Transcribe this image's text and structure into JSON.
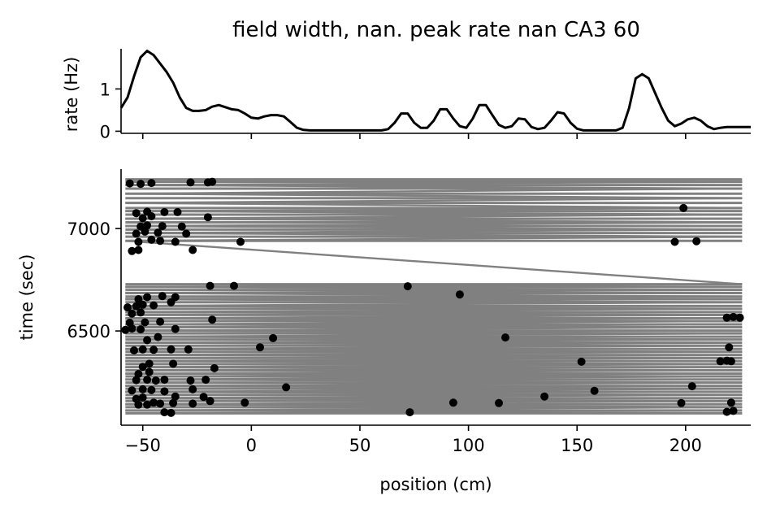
{
  "figure_title": "field width, nan. peak rate nan CA3 60",
  "colors": {
    "axis": "#000000",
    "rate_line": "#000000",
    "trajectory": "#808080",
    "spikes": "#000000"
  },
  "chart_data": [
    {
      "type": "line",
      "title": "field width, nan. peak rate nan CA3 60",
      "xlabel": "",
      "ylabel": "rate (Hz)",
      "xlim": [
        -60,
        230
      ],
      "ylim": [
        -0.05,
        1.95
      ],
      "yticks": [
        0,
        1
      ],
      "ytick_labels": [
        "0",
        "1"
      ],
      "xticks": [
        -50,
        0,
        50,
        100,
        150,
        200
      ],
      "series": [
        {
          "name": "rate",
          "x": [
            -60,
            -57,
            -54,
            -51,
            -48,
            -45,
            -42,
            -39,
            -36,
            -33,
            -30,
            -27,
            -24,
            -21,
            -18,
            -15,
            -12,
            -9,
            -6,
            -3,
            0,
            3,
            6,
            9,
            12,
            15,
            18,
            21,
            24,
            27,
            30,
            33,
            36,
            39,
            42,
            45,
            48,
            51,
            54,
            57,
            60,
            63,
            66,
            69,
            72,
            75,
            78,
            81,
            84,
            87,
            90,
            93,
            96,
            99,
            102,
            105,
            108,
            111,
            114,
            117,
            120,
            123,
            126,
            129,
            132,
            135,
            138,
            141,
            144,
            147,
            150,
            153,
            156,
            159,
            162,
            165,
            168,
            171,
            174,
            177,
            180,
            183,
            186,
            189,
            192,
            195,
            198,
            201,
            204,
            207,
            210,
            213,
            216,
            219,
            222,
            225,
            228,
            230
          ],
          "values": [
            0.55,
            0.8,
            1.3,
            1.75,
            1.9,
            1.8,
            1.6,
            1.4,
            1.15,
            0.8,
            0.55,
            0.48,
            0.48,
            0.5,
            0.58,
            0.62,
            0.57,
            0.52,
            0.5,
            0.42,
            0.32,
            0.3,
            0.35,
            0.38,
            0.38,
            0.35,
            0.22,
            0.08,
            0.03,
            0.02,
            0.02,
            0.02,
            0.02,
            0.02,
            0.02,
            0.02,
            0.02,
            0.02,
            0.02,
            0.02,
            0.02,
            0.05,
            0.2,
            0.42,
            0.42,
            0.2,
            0.08,
            0.08,
            0.25,
            0.52,
            0.52,
            0.3,
            0.12,
            0.08,
            0.3,
            0.62,
            0.62,
            0.38,
            0.15,
            0.08,
            0.12,
            0.3,
            0.28,
            0.1,
            0.05,
            0.08,
            0.25,
            0.45,
            0.42,
            0.2,
            0.06,
            0.02,
            0.02,
            0.02,
            0.02,
            0.02,
            0.02,
            0.08,
            0.55,
            1.25,
            1.35,
            1.25,
            0.9,
            0.55,
            0.25,
            0.12,
            0.18,
            0.28,
            0.32,
            0.25,
            0.12,
            0.05,
            0.08,
            0.1,
            0.1,
            0.1,
            0.1,
            0.1
          ]
        }
      ]
    },
    {
      "type": "scatter",
      "title": "",
      "xlabel": "position (cm)",
      "ylabel": "time (sec)",
      "xlim": [
        -60,
        230
      ],
      "ylim": [
        6040,
        7290
      ],
      "yticks": [
        6500,
        7000
      ],
      "ytick_labels": [
        "6500",
        "7000"
      ],
      "xticks": [
        -50,
        0,
        50,
        100,
        150,
        200
      ],
      "xtick_labels": [
        "−50",
        "0",
        "50",
        "100",
        "150",
        "200"
      ],
      "trajectory_times": [
        6098,
        6112,
        6128,
        6142,
        6158,
        6172,
        6188,
        6203,
        6218,
        6232,
        6248,
        6263,
        6278,
        6292,
        6308,
        6323,
        6338,
        6353,
        6368,
        6383,
        6398,
        6412,
        6428,
        6443,
        6458,
        6472,
        6488,
        6502,
        6518,
        6532,
        6548,
        6562,
        6578,
        6592,
        6608,
        6622,
        6640,
        6655,
        6668,
        6685,
        6700,
        6715,
        6728,
        6940,
        6960,
        6978,
        6995,
        7012,
        7030,
        7048,
        7068,
        7085,
        7100,
        7125,
        7148,
        7170,
        7195,
        7212,
        7228,
        7240
      ],
      "trajectory_xlim": [
        -58,
        226
      ],
      "spikes": [
        {
          "x": 73,
          "t": 6103
        },
        {
          "x": -37,
          "t": 6100
        },
        {
          "x": -40,
          "t": 6103
        },
        {
          "x": 219,
          "t": 6105
        },
        {
          "x": 222,
          "t": 6110
        },
        {
          "x": -52,
          "t": 6140
        },
        {
          "x": -48,
          "t": 6140
        },
        {
          "x": -45,
          "t": 6150
        },
        {
          "x": -42,
          "t": 6145
        },
        {
          "x": -36,
          "t": 6148
        },
        {
          "x": -27,
          "t": 6145
        },
        {
          "x": -19,
          "t": 6158
        },
        {
          "x": -3,
          "t": 6150
        },
        {
          "x": 93,
          "t": 6150
        },
        {
          "x": 114,
          "t": 6148
        },
        {
          "x": 198,
          "t": 6148
        },
        {
          "x": 221,
          "t": 6150
        },
        {
          "x": -53,
          "t": 6168
        },
        {
          "x": -50,
          "t": 6175
        },
        {
          "x": -35,
          "t": 6180
        },
        {
          "x": -22,
          "t": 6178
        },
        {
          "x": 135,
          "t": 6180
        },
        {
          "x": 158,
          "t": 6208
        },
        {
          "x": -55,
          "t": 6210
        },
        {
          "x": -50,
          "t": 6215
        },
        {
          "x": -46,
          "t": 6212
        },
        {
          "x": -40,
          "t": 6205
        },
        {
          "x": -27,
          "t": 6215
        },
        {
          "x": 16,
          "t": 6225
        },
        {
          "x": 203,
          "t": 6230
        },
        {
          "x": -53,
          "t": 6260
        },
        {
          "x": -48,
          "t": 6262
        },
        {
          "x": -44,
          "t": 6258
        },
        {
          "x": -40,
          "t": 6262
        },
        {
          "x": -28,
          "t": 6258
        },
        {
          "x": -21,
          "t": 6262
        },
        {
          "x": -52,
          "t": 6290
        },
        {
          "x": -47,
          "t": 6300
        },
        {
          "x": -17,
          "t": 6318
        },
        {
          "x": -50,
          "t": 6325
        },
        {
          "x": -47,
          "t": 6340
        },
        {
          "x": -36,
          "t": 6340
        },
        {
          "x": 152,
          "t": 6350
        },
        {
          "x": 216,
          "t": 6352
        },
        {
          "x": 219,
          "t": 6355
        },
        {
          "x": 221,
          "t": 6352
        },
        {
          "x": -54,
          "t": 6405
        },
        {
          "x": -50,
          "t": 6410
        },
        {
          "x": -45,
          "t": 6408
        },
        {
          "x": -37,
          "t": 6410
        },
        {
          "x": -29,
          "t": 6410
        },
        {
          "x": 4,
          "t": 6420
        },
        {
          "x": 220,
          "t": 6420
        },
        {
          "x": -48,
          "t": 6455
        },
        {
          "x": -43,
          "t": 6470
        },
        {
          "x": 10,
          "t": 6465
        },
        {
          "x": 117,
          "t": 6468
        },
        {
          "x": -58,
          "t": 6505
        },
        {
          "x": -55,
          "t": 6512
        },
        {
          "x": -51,
          "t": 6508
        },
        {
          "x": -35,
          "t": 6510
        },
        {
          "x": -56,
          "t": 6540
        },
        {
          "x": -49,
          "t": 6542
        },
        {
          "x": -42,
          "t": 6545
        },
        {
          "x": -18,
          "t": 6555
        },
        {
          "x": 219,
          "t": 6565
        },
        {
          "x": 222,
          "t": 6568
        },
        {
          "x": 225,
          "t": 6565
        },
        {
          "x": -55,
          "t": 6585
        },
        {
          "x": -51,
          "t": 6590
        },
        {
          "x": -57,
          "t": 6615
        },
        {
          "x": -53,
          "t": 6620
        },
        {
          "x": -50,
          "t": 6628
        },
        {
          "x": -45,
          "t": 6625
        },
        {
          "x": -37,
          "t": 6640
        },
        {
          "x": -52,
          "t": 6655
        },
        {
          "x": -48,
          "t": 6665
        },
        {
          "x": -41,
          "t": 6670
        },
        {
          "x": -35,
          "t": 6665
        },
        {
          "x": 96,
          "t": 6678
        },
        {
          "x": -19,
          "t": 6720
        },
        {
          "x": -8,
          "t": 6720
        },
        {
          "x": 72,
          "t": 6718
        },
        {
          "x": -55,
          "t": 6890
        },
        {
          "x": -52,
          "t": 6895
        },
        {
          "x": -52,
          "t": 6935
        },
        {
          "x": -46,
          "t": 6945
        },
        {
          "x": -42,
          "t": 6940
        },
        {
          "x": -35,
          "t": 6935
        },
        {
          "x": -27,
          "t": 6895
        },
        {
          "x": -5,
          "t": 6935
        },
        {
          "x": 195,
          "t": 6935
        },
        {
          "x": 205,
          "t": 6938
        },
        {
          "x": -53,
          "t": 6975
        },
        {
          "x": -49,
          "t": 6985
        },
        {
          "x": -43,
          "t": 6980
        },
        {
          "x": -30,
          "t": 6975
        },
        {
          "x": -51,
          "t": 7010
        },
        {
          "x": -48,
          "t": 7015
        },
        {
          "x": -41,
          "t": 7012
        },
        {
          "x": -32,
          "t": 7010
        },
        {
          "x": -50,
          "t": 7050
        },
        {
          "x": -46,
          "t": 7060
        },
        {
          "x": -20,
          "t": 7055
        },
        {
          "x": -53,
          "t": 7075
        },
        {
          "x": -48,
          "t": 7082
        },
        {
          "x": -40,
          "t": 7080
        },
        {
          "x": -34,
          "t": 7080
        },
        {
          "x": 199,
          "t": 7100
        },
        {
          "x": -56,
          "t": 7220
        },
        {
          "x": -51,
          "t": 7218
        },
        {
          "x": -46,
          "t": 7222
        },
        {
          "x": -28,
          "t": 7225
        },
        {
          "x": -20,
          "t": 7225
        },
        {
          "x": -18,
          "t": 7228
        }
      ]
    }
  ]
}
